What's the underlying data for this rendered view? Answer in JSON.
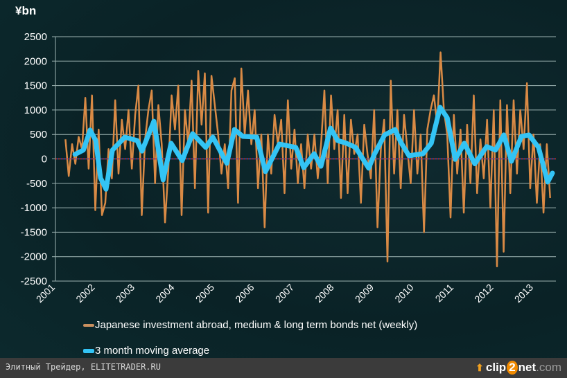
{
  "chart_data": {
    "type": "line",
    "ylabel": "¥bn",
    "ylim": [
      -2500,
      2500
    ],
    "yticks": [
      "2500",
      "2000",
      "1500",
      "1000",
      "500",
      "0",
      "-500",
      "-1000",
      "-1500",
      "-2000",
      "-2500"
    ],
    "ytick_values": [
      2500,
      2000,
      1500,
      1000,
      500,
      0,
      -500,
      -1000,
      -1500,
      -2000,
      -2500
    ],
    "xlim": [
      2001,
      2013.6
    ],
    "xticks": [
      "2001",
      "2002",
      "2003",
      "2004",
      "2005",
      "2006",
      "2007",
      "2008",
      "2009",
      "2010",
      "2011",
      "2012",
      "2013"
    ],
    "grid": true,
    "zero_line": true,
    "legend_position": "bottom",
    "series": [
      {
        "name": "Japanese investment abroad, medium & long term bonds net (weekly)",
        "color": "#d98a45",
        "x_start": 2001.25,
        "x_step": 0.0833,
        "values": [
          400,
          -350,
          300,
          -100,
          450,
          200,
          1250,
          -200,
          1300,
          -1050,
          600,
          -1150,
          -900,
          200,
          -400,
          1200,
          -300,
          800,
          200,
          1000,
          -200,
          900,
          1500,
          -1150,
          400,
          1000,
          1400,
          -500,
          1100,
          300,
          -1300,
          -200,
          1300,
          600,
          1500,
          -1150,
          1000,
          300,
          1600,
          -600,
          1800,
          700,
          1750,
          -1100,
          1700,
          1100,
          500,
          -300,
          300,
          -600,
          1400,
          1650,
          -900,
          1850,
          500,
          1400,
          300,
          1000,
          -600,
          500,
          -1400,
          500,
          -300,
          900,
          300,
          800,
          -700,
          1200,
          -200,
          600,
          -500,
          300,
          -600,
          500,
          -200,
          500,
          -400,
          300,
          1400,
          -500,
          1300,
          200,
          1000,
          -800,
          900,
          -700,
          800,
          100,
          500,
          -900,
          700,
          100,
          -400,
          1000,
          -1400,
          200,
          800,
          -2100,
          1600,
          -300,
          1000,
          -600,
          900,
          200,
          -500,
          1000,
          -300,
          500,
          -1500,
          600,
          1000,
          1300,
          700,
          2180,
          1000,
          500,
          -1200,
          900,
          -300,
          600,
          -1100,
          700,
          -500,
          1300,
          -700,
          400,
          -400,
          800,
          -1000,
          1000,
          -2200,
          1200,
          -1900,
          1100,
          -700,
          1200,
          -300,
          1000,
          200,
          1550,
          -600,
          500,
          -900,
          300,
          -1100,
          300,
          -800
        ]
      },
      {
        "name": "3 month moving average",
        "color": "#33c4f5",
        "x": [
          2001.49,
          2001.7,
          2001.87,
          2002.01,
          2002.13,
          2002.27,
          2002.43,
          2002.74,
          2003.05,
          2003.17,
          2003.47,
          2003.7,
          2003.9,
          2004.18,
          2004.44,
          2004.77,
          2004.95,
          2005.3,
          2005.49,
          2005.7,
          2006.05,
          2006.27,
          2006.62,
          2007.03,
          2007.23,
          2007.49,
          2007.66,
          2007.9,
          2008.08,
          2008.3,
          2008.53,
          2008.86,
          2009.0,
          2009.26,
          2009.52,
          2009.66,
          2009.87,
          2010.22,
          2010.43,
          2010.65,
          2010.83,
          2011.03,
          2011.26,
          2011.52,
          2011.82,
          2012.04,
          2012.25,
          2012.44,
          2012.69,
          2012.88,
          2013.12,
          2013.35,
          2013.47
        ],
        "y": [
          92,
          180,
          590,
          375,
          -390,
          -620,
          180,
          445,
          375,
          160,
          770,
          -430,
          320,
          -35,
          515,
          235,
          445,
          -90,
          600,
          460,
          445,
          -260,
          305,
          235,
          -180,
          105,
          -150,
          630,
          375,
          320,
          235,
          -190,
          90,
          490,
          600,
          345,
          65,
          105,
          320,
          1055,
          840,
          -10,
          320,
          -100,
          250,
          180,
          490,
          -50,
          460,
          490,
          235,
          -475,
          -290
        ]
      }
    ]
  },
  "footer": {
    "text": "Элитный Трейдер, ELITETRADER.RU",
    "logo_clip": "clip",
    "logo_two": "2",
    "logo_net": "net",
    "logo_com": ".com"
  }
}
